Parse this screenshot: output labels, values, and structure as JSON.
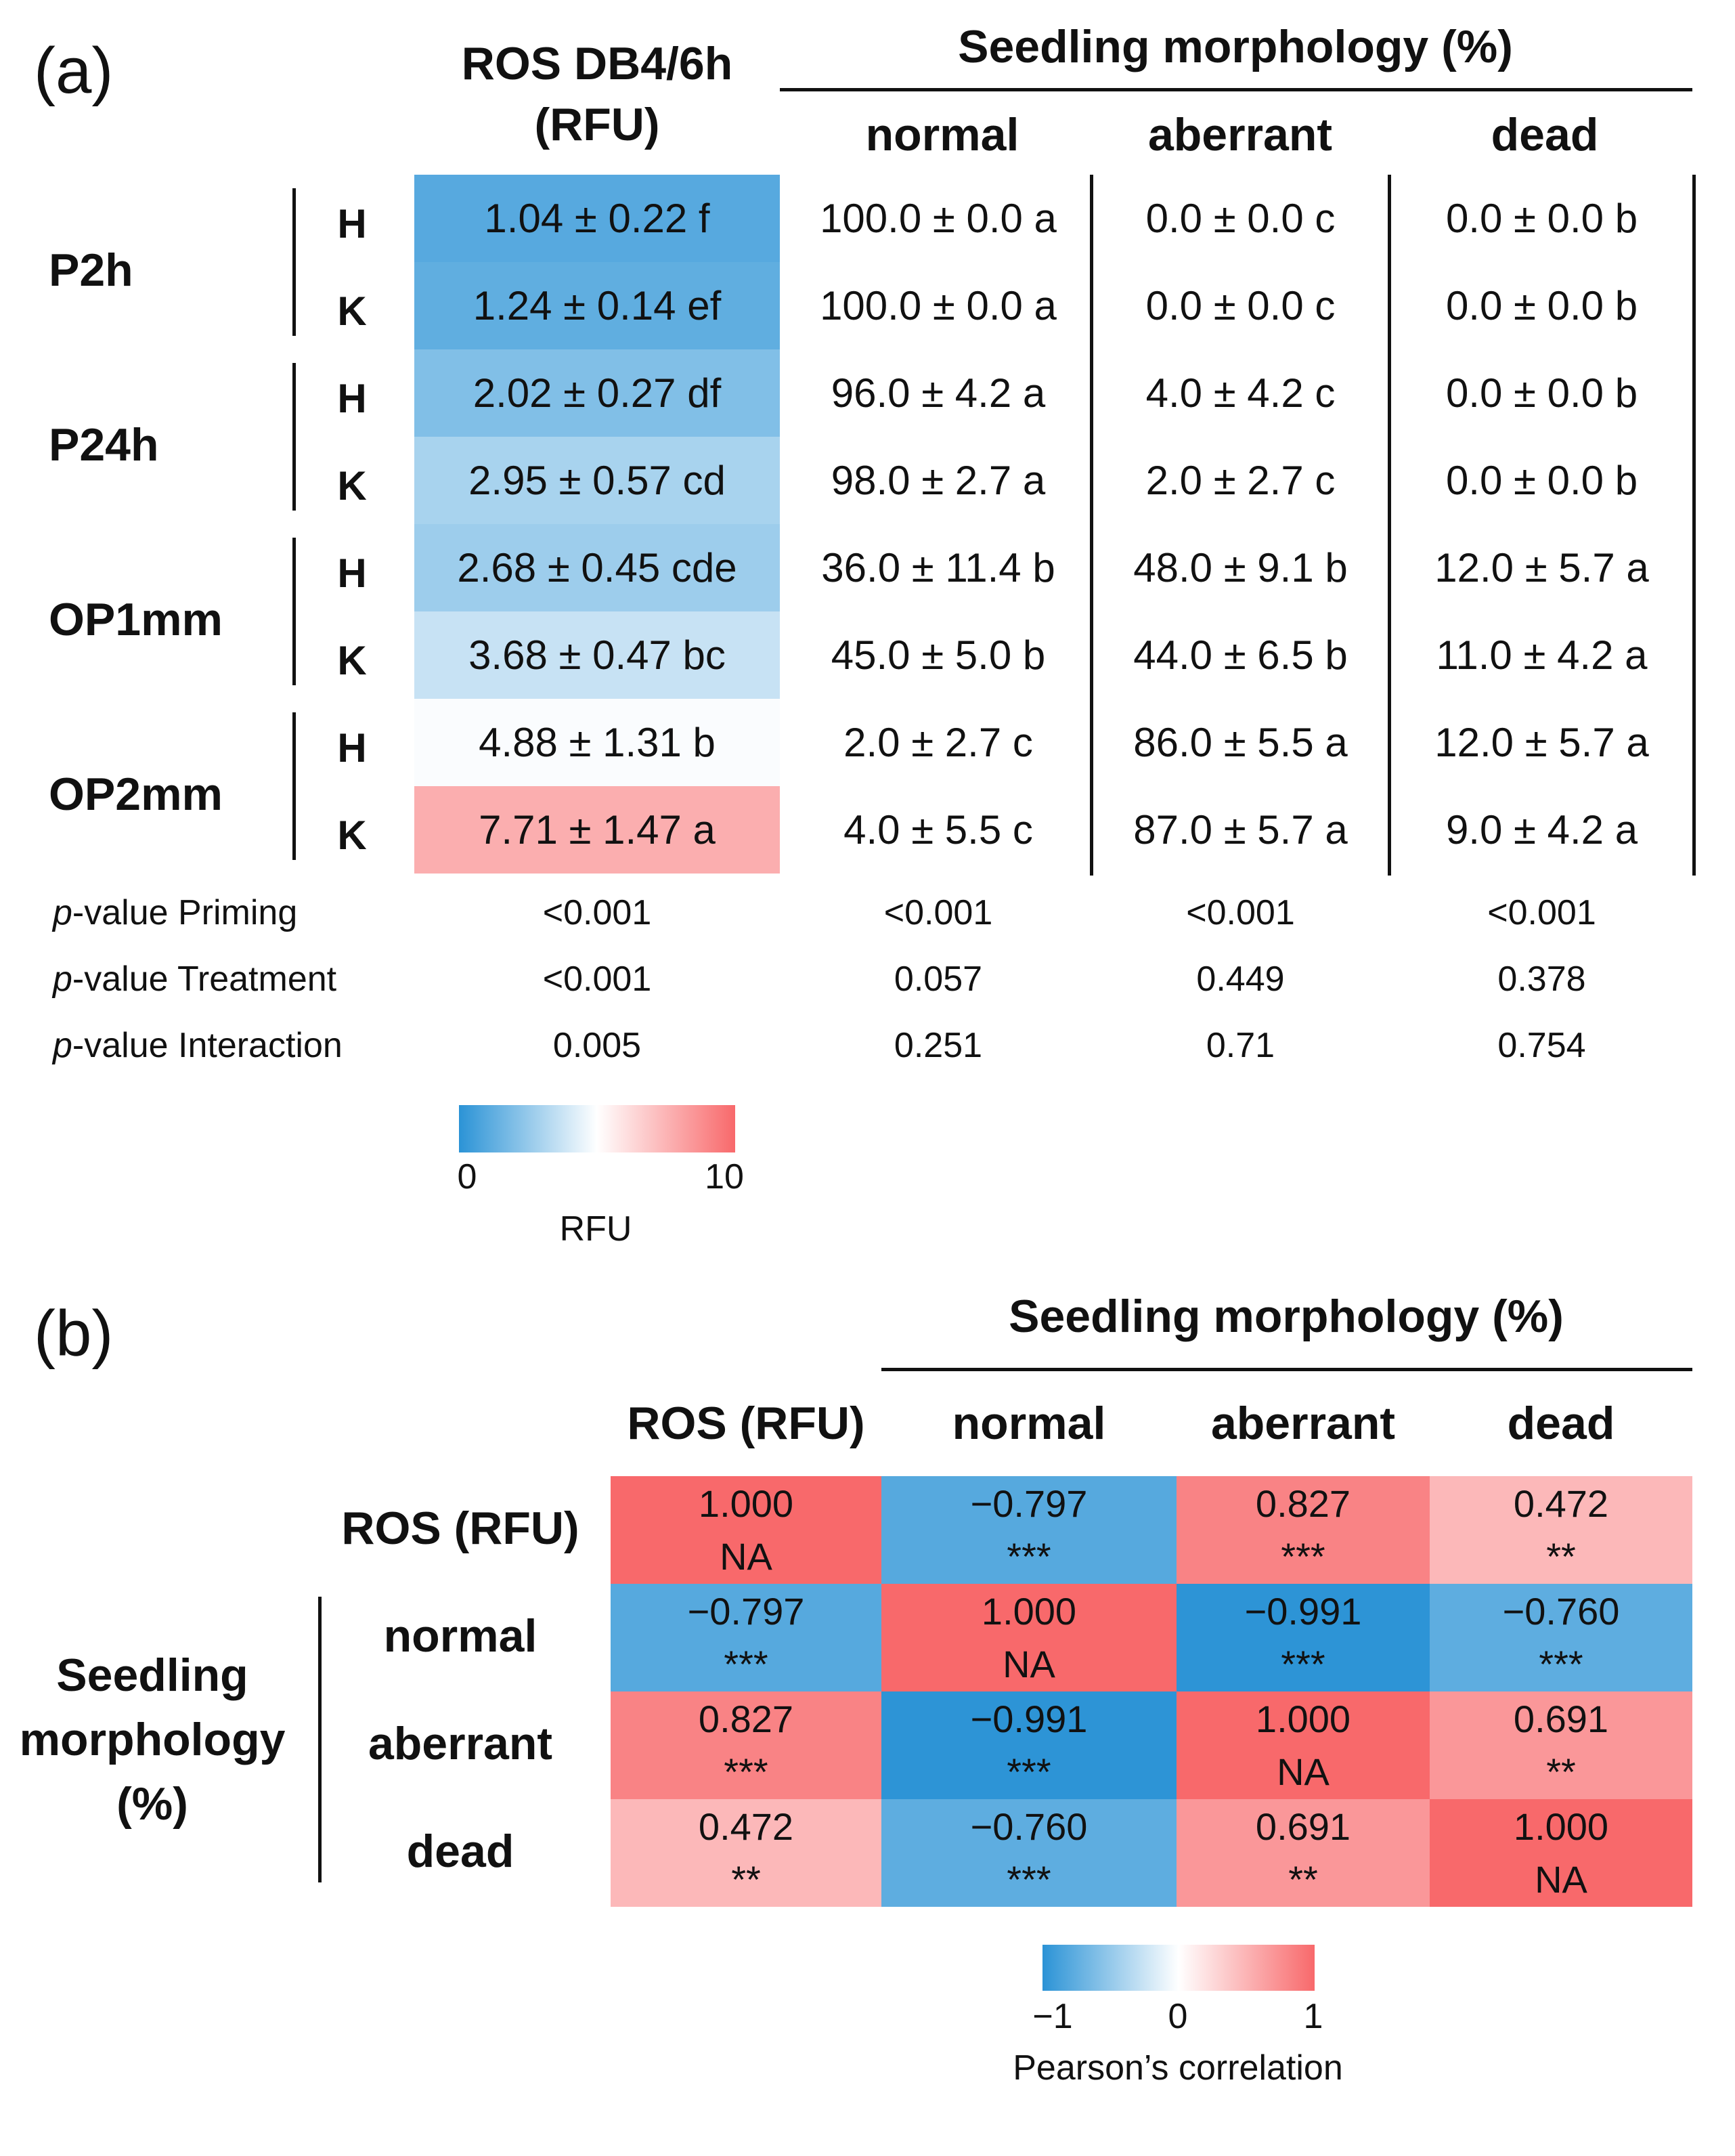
{
  "panel_a": {
    "label": "(a)",
    "ros_header_line1": "ROS DB4/6h",
    "ros_header_line2": "(RFU)",
    "morph_header": "Seedling morphology (%)",
    "col_normal": "normal",
    "col_aberrant": "aberrant",
    "col_dead": "dead",
    "groups": [
      "P2h",
      "P24h",
      "OP1mm",
      "OP2mm"
    ],
    "subgroups": [
      "H",
      "K"
    ],
    "rows": [
      {
        "ros": "1.04 ± 0.22 f",
        "ros_value": 1.04,
        "normal": "100.0 ± 0.0 a",
        "aberrant": "0.0 ± 0.0 c",
        "dead": "0.0 ± 0.0 b"
      },
      {
        "ros": "1.24 ± 0.14 ef",
        "ros_value": 1.24,
        "normal": "100.0 ± 0.0 a",
        "aberrant": "0.0 ± 0.0 c",
        "dead": "0.0 ± 0.0 b"
      },
      {
        "ros": "2.02 ± 0.27 df",
        "ros_value": 2.02,
        "normal": "96.0 ± 4.2 a",
        "aberrant": "4.0 ± 4.2 c",
        "dead": "0.0 ± 0.0 b"
      },
      {
        "ros": "2.95 ± 0.57 cd",
        "ros_value": 2.95,
        "normal": "98.0 ± 2.7 a",
        "aberrant": "2.0 ± 2.7 c",
        "dead": "0.0 ± 0.0 b"
      },
      {
        "ros": "2.68 ± 0.45 cde",
        "ros_value": 2.68,
        "normal": "36.0 ± 11.4 b",
        "aberrant": "48.0 ± 9.1 b",
        "dead": "12.0 ± 5.7 a"
      },
      {
        "ros": "3.68 ± 0.47 bc",
        "ros_value": 3.68,
        "normal": "45.0 ± 5.0 b",
        "aberrant": "44.0 ± 6.5 b",
        "dead": "11.0 ± 4.2 a"
      },
      {
        "ros": "4.88 ± 1.31 b",
        "ros_value": 4.88,
        "normal": "2.0 ± 2.7 c",
        "aberrant": "86.0 ± 5.5 a",
        "dead": "12.0 ± 5.7 a"
      },
      {
        "ros": "7.71 ± 1.47 a",
        "ros_value": 7.71,
        "normal": "4.0 ± 5.5 c",
        "aberrant": "87.0 ± 5.7 a",
        "dead": "9.0 ± 4.2 a"
      }
    ],
    "pvalue_prefix": "p",
    "pvalues": [
      {
        "label": "-value Priming",
        "ros": "<0.001",
        "normal": "<0.001",
        "aberrant": "<0.001",
        "dead": "<0.001"
      },
      {
        "label": "-value Treatment",
        "ros": "<0.001",
        "normal": "0.057",
        "aberrant": "0.449",
        "dead": "0.378"
      },
      {
        "label": "-value Interaction",
        "ros": "0.005",
        "normal": "0.251",
        "aberrant": "0.71",
        "dead": "0.754"
      }
    ],
    "legend": {
      "min": "0",
      "max": "10",
      "title": "RFU",
      "min_value": 0,
      "max_value": 10
    }
  },
  "panel_b": {
    "label": "(b)",
    "morph_header": "Seedling morphology (%)",
    "columns": [
      "ROS (RFU)",
      "normal",
      "aberrant",
      "dead"
    ],
    "rows": [
      "ROS (RFU)",
      "normal",
      "aberrant",
      "dead"
    ],
    "side_label_lines": [
      "Seedling",
      "morphology",
      "(%)"
    ],
    "matrix": [
      [
        {
          "v": "1.000",
          "s": "NA",
          "r": 1.0
        },
        {
          "v": "−0.797",
          "s": "***",
          "r": -0.797
        },
        {
          "v": "0.827",
          "s": "***",
          "r": 0.827
        },
        {
          "v": "0.472",
          "s": "**",
          "r": 0.472
        }
      ],
      [
        {
          "v": "−0.797",
          "s": "***",
          "r": -0.797
        },
        {
          "v": "1.000",
          "s": "NA",
          "r": 1.0
        },
        {
          "v": "−0.991",
          "s": "***",
          "r": -0.991
        },
        {
          "v": "−0.760",
          "s": "***",
          "r": -0.76
        }
      ],
      [
        {
          "v": "0.827",
          "s": "***",
          "r": 0.827
        },
        {
          "v": "−0.991",
          "s": "***",
          "r": -0.991
        },
        {
          "v": "1.000",
          "s": "NA",
          "r": 1.0
        },
        {
          "v": "0.691",
          "s": "**",
          "r": 0.691
        }
      ],
      [
        {
          "v": "0.472",
          "s": "**",
          "r": 0.472
        },
        {
          "v": "−0.760",
          "s": "***",
          "r": -0.76
        },
        {
          "v": "0.691",
          "s": "**",
          "r": 0.691
        },
        {
          "v": "1.000",
          "s": "NA",
          "r": 1.0
        }
      ]
    ],
    "legend": {
      "min": "−1",
      "mid": "0",
      "max": "1",
      "title": "Pearson’s correlation"
    }
  },
  "colors": {
    "blue": "#2b93d6",
    "white": "#ffffff",
    "red": "#f8696b"
  }
}
